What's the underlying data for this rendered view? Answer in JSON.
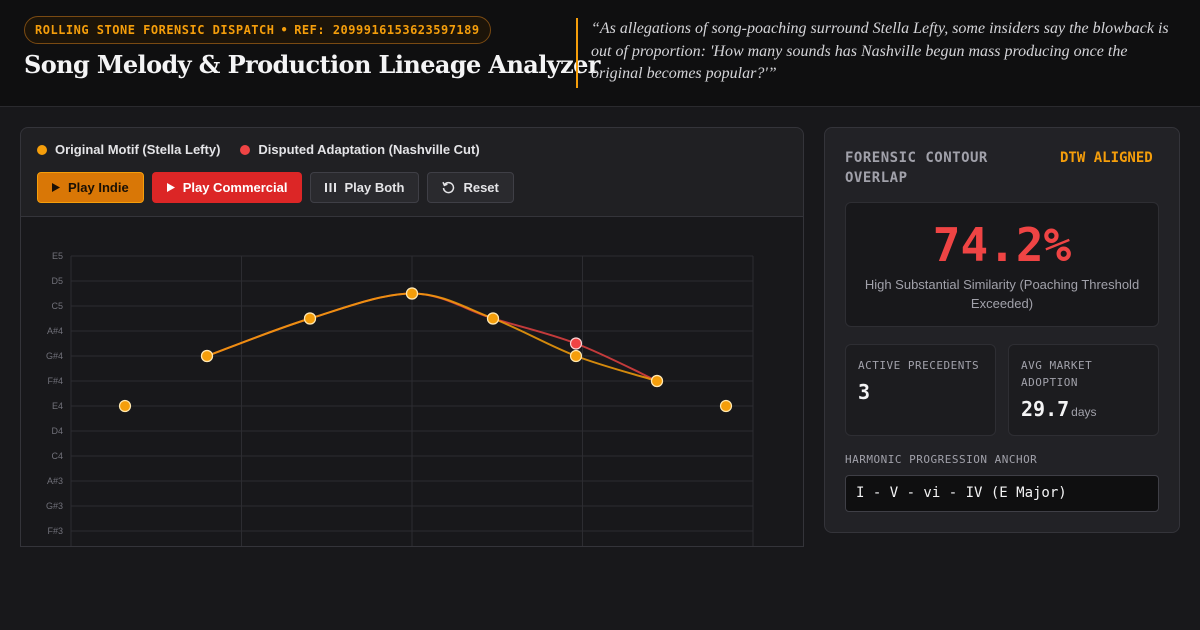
{
  "header": {
    "badge_publication": "ROLLING STONE FORENSIC DISPATCH",
    "badge_separator": "•",
    "badge_ref": "REF: 2099916153623597189",
    "title": "Song Melody & Production Lineage Analyzer",
    "quote": "“As allegations of song-poaching surround Stella Lefty, some insiders say the blowback is out of proportion: 'How many sounds has Nashville begun mass producing once the original becomes popular?'”"
  },
  "legend": {
    "original": {
      "label": "Original Motif (Stella Lefty)",
      "color": "#f59e0b"
    },
    "disputed": {
      "label": "Disputed Adaptation (Nashville Cut)",
      "color": "#ef4444"
    }
  },
  "controls": {
    "play_indie": "Play Indie",
    "play_commercial": "Play Commercial",
    "play_both": "Play Both",
    "reset": "Reset"
  },
  "chart_data": {
    "type": "line",
    "y_ticks": [
      "E5",
      "D5",
      "C5",
      "A#4",
      "G#4",
      "F#4",
      "E4",
      "D4",
      "C4",
      "A#3",
      "G#3",
      "F#3"
    ],
    "grid": true,
    "series": [
      {
        "name": "Original Motif (Stella Lefty)",
        "color": "#f59e0b",
        "notes": [
          "E4",
          "G#4",
          "B4",
          "C#5",
          "B4",
          "G#4",
          "F#4",
          "E4"
        ]
      },
      {
        "name": "Disputed Adaptation (Nashville Cut)",
        "color": "#ef4444",
        "notes": [
          "G#4",
          "B4",
          "C#5",
          "B4",
          "A4",
          "F#4"
        ]
      }
    ]
  },
  "analysis": {
    "title": "FORENSIC CONTOUR OVERLAP",
    "tag": "DTW ALIGNED",
    "score": "74.2%",
    "score_label": "High Substantial Similarity (Poaching Threshold Exceeded)",
    "stats": {
      "precedents_label": "ACTIVE PRECEDENTS",
      "precedents_value": "3",
      "adoption_label": "AVG MARKET ADOPTION",
      "adoption_value": "29.7",
      "adoption_unit": "days"
    },
    "anchor_label": "HARMONIC PROGRESSION ANCHOR",
    "anchor_value": "I - V - vi - IV (E Major)"
  }
}
